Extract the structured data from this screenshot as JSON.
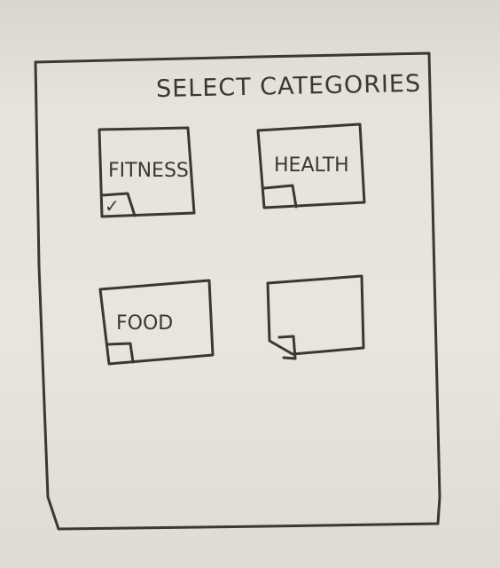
{
  "title": "SELECT CATEGORIES",
  "categories": [
    {
      "label": "FITNESS",
      "selected": true
    },
    {
      "label": "HEALTH",
      "selected": false
    },
    {
      "label": "FOOD",
      "selected": false
    },
    {
      "label": "",
      "selected": false
    }
  ],
  "check_mark": "✓",
  "colors": {
    "ink": "#3a3835",
    "paper": "#e4e1da"
  }
}
